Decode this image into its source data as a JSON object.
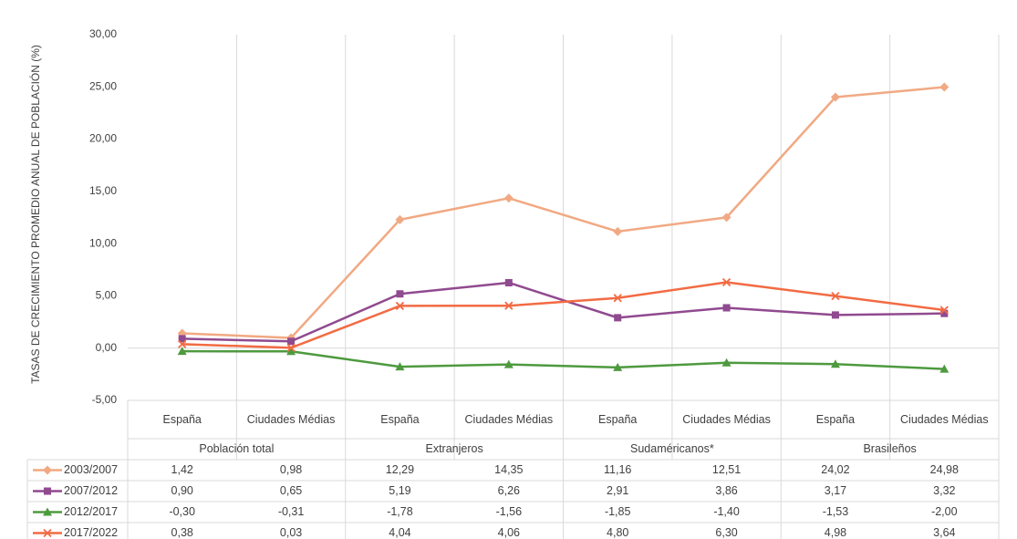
{
  "chart_data": {
    "type": "line",
    "y_label": "TASAS DE CRECIMIENTO PROMEDIO ANUAL DE POBLACIÓN  (%)",
    "categories": [
      "España",
      "Ciudades Médias",
      "España",
      "Ciudades Médias",
      "España",
      "Ciudades Médias",
      "España",
      "Ciudades Médias"
    ],
    "groups": [
      "Población total",
      "Extranjeros",
      "Sudaméricanos*",
      "Brasileños"
    ],
    "ylim": [
      -5,
      30
    ],
    "yticks": [
      {
        "value": -5,
        "label": "-5,00"
      },
      {
        "value": 0,
        "label": "0,00"
      },
      {
        "value": 5,
        "label": "5,00"
      },
      {
        "value": 10,
        "label": "10,00"
      },
      {
        "value": 15,
        "label": "15,00"
      },
      {
        "value": 20,
        "label": "20,00"
      },
      {
        "value": 25,
        "label": "25,00"
      },
      {
        "value": 30,
        "label": "30,00"
      }
    ],
    "series": [
      {
        "name": "2003/2007",
        "color": "#f1a983",
        "marker": "diamond",
        "values": [
          1.42,
          0.98,
          12.29,
          14.35,
          11.16,
          12.51,
          24.02,
          24.98
        ],
        "value_labels": [
          "1,42",
          "0,98",
          "12,29",
          "14,35",
          "11,16",
          "12,51",
          "24,02",
          "24,98"
        ]
      },
      {
        "name": "2007/2012",
        "color": "#904a8f",
        "marker": "square",
        "values": [
          0.9,
          0.65,
          5.19,
          6.26,
          2.91,
          3.86,
          3.17,
          3.32
        ],
        "value_labels": [
          "0,90",
          "0,65",
          "5,19",
          "6,26",
          "2,91",
          "3,86",
          "3,17",
          "3,32"
        ]
      },
      {
        "name": "2012/2017",
        "color": "#4e9a3f",
        "marker": "triangle",
        "values": [
          -0.3,
          -0.31,
          -1.78,
          -1.56,
          -1.85,
          -1.4,
          -1.53,
          -2.0
        ],
        "value_labels": [
          "-0,30",
          "-0,31",
          "-1,78",
          "-1,56",
          "-1,85",
          "-1,40",
          "-1,53",
          "-2,00"
        ]
      },
      {
        "name": "2017/2022",
        "color": "#f26b43",
        "marker": "x",
        "values": [
          0.38,
          0.03,
          4.04,
          4.06,
          4.8,
          6.3,
          4.98,
          3.64
        ],
        "value_labels": [
          "0,38",
          "0,03",
          "4,04",
          "4,06",
          "4,80",
          "6,30",
          "4,98",
          "3,64"
        ]
      }
    ]
  }
}
